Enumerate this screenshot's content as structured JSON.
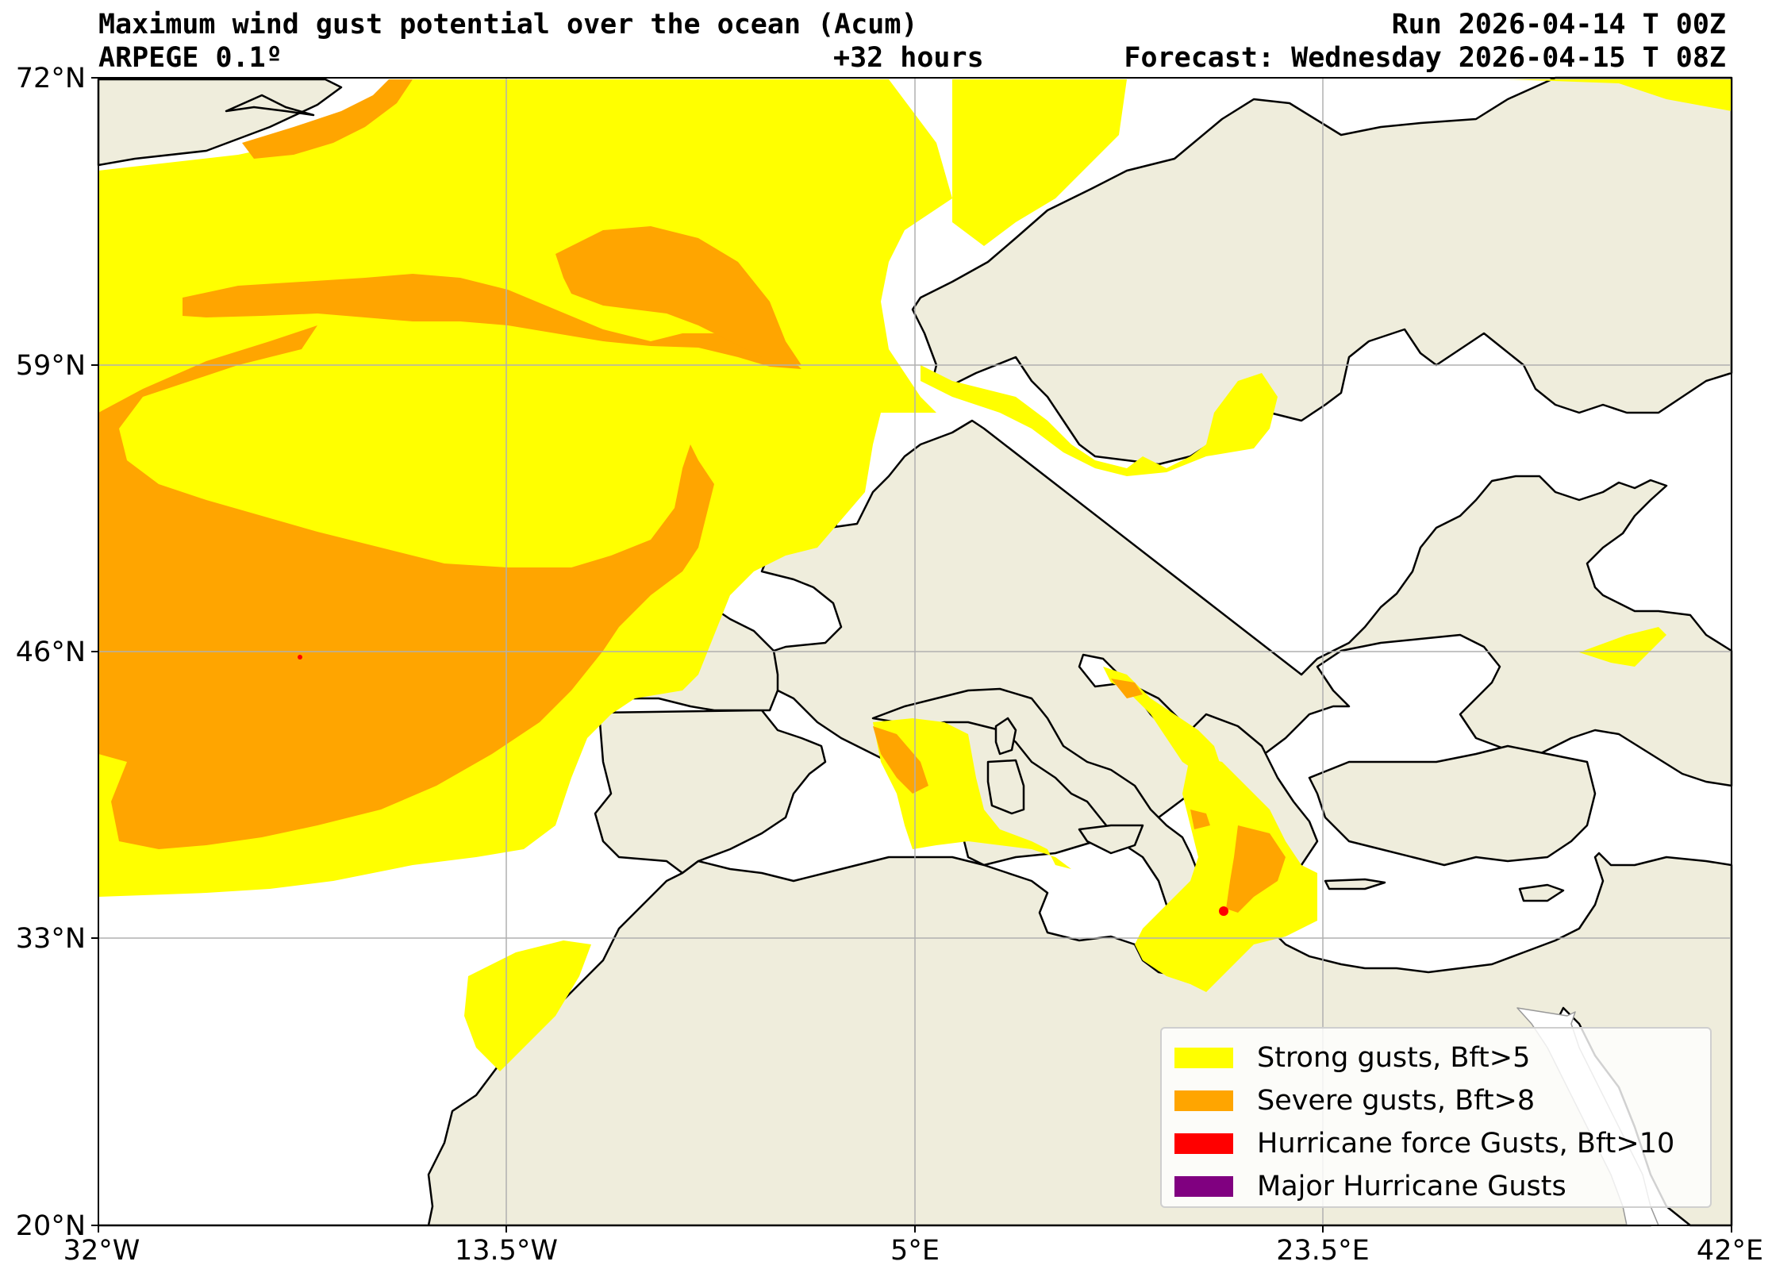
{
  "header": {
    "title_left_line1": "Maximum wind gust potential over the ocean (Acum)",
    "title_left_line2": "ARPEGE 0.1º",
    "lead_time": "+32 hours",
    "run": "Run 2026-04-14 T 00Z",
    "forecast": "Forecast: Wednesday 2026-04-15 T 08Z"
  },
  "axes": {
    "x_ticks": [
      "32°W",
      "13.5°W",
      "5°E",
      "23.5°E",
      "42°E"
    ],
    "y_ticks": [
      "72°N",
      "59°N",
      "46°N",
      "33°N",
      "20°N"
    ],
    "lon_range": [
      -32,
      42
    ],
    "lat_range": [
      20,
      72
    ],
    "grid": true
  },
  "colors": {
    "land": "#efeddc",
    "sea": "#ffffff",
    "coast": "#000000",
    "grid": "#b0b0b0",
    "strong": "#ffff00",
    "severe": "#ffa500",
    "hurricane": "#ff0000",
    "major": "#800080"
  },
  "legend": [
    {
      "label": "Strong gusts, Bft>5",
      "color": "#ffff00"
    },
    {
      "label": "Severe gusts, Bft>8",
      "color": "#ffa500"
    },
    {
      "label": "Hurricane force Gusts, Bft>10",
      "color": "#ff0000"
    },
    {
      "label": "Major Hurricane Gusts",
      "color": "#800080"
    }
  ]
}
